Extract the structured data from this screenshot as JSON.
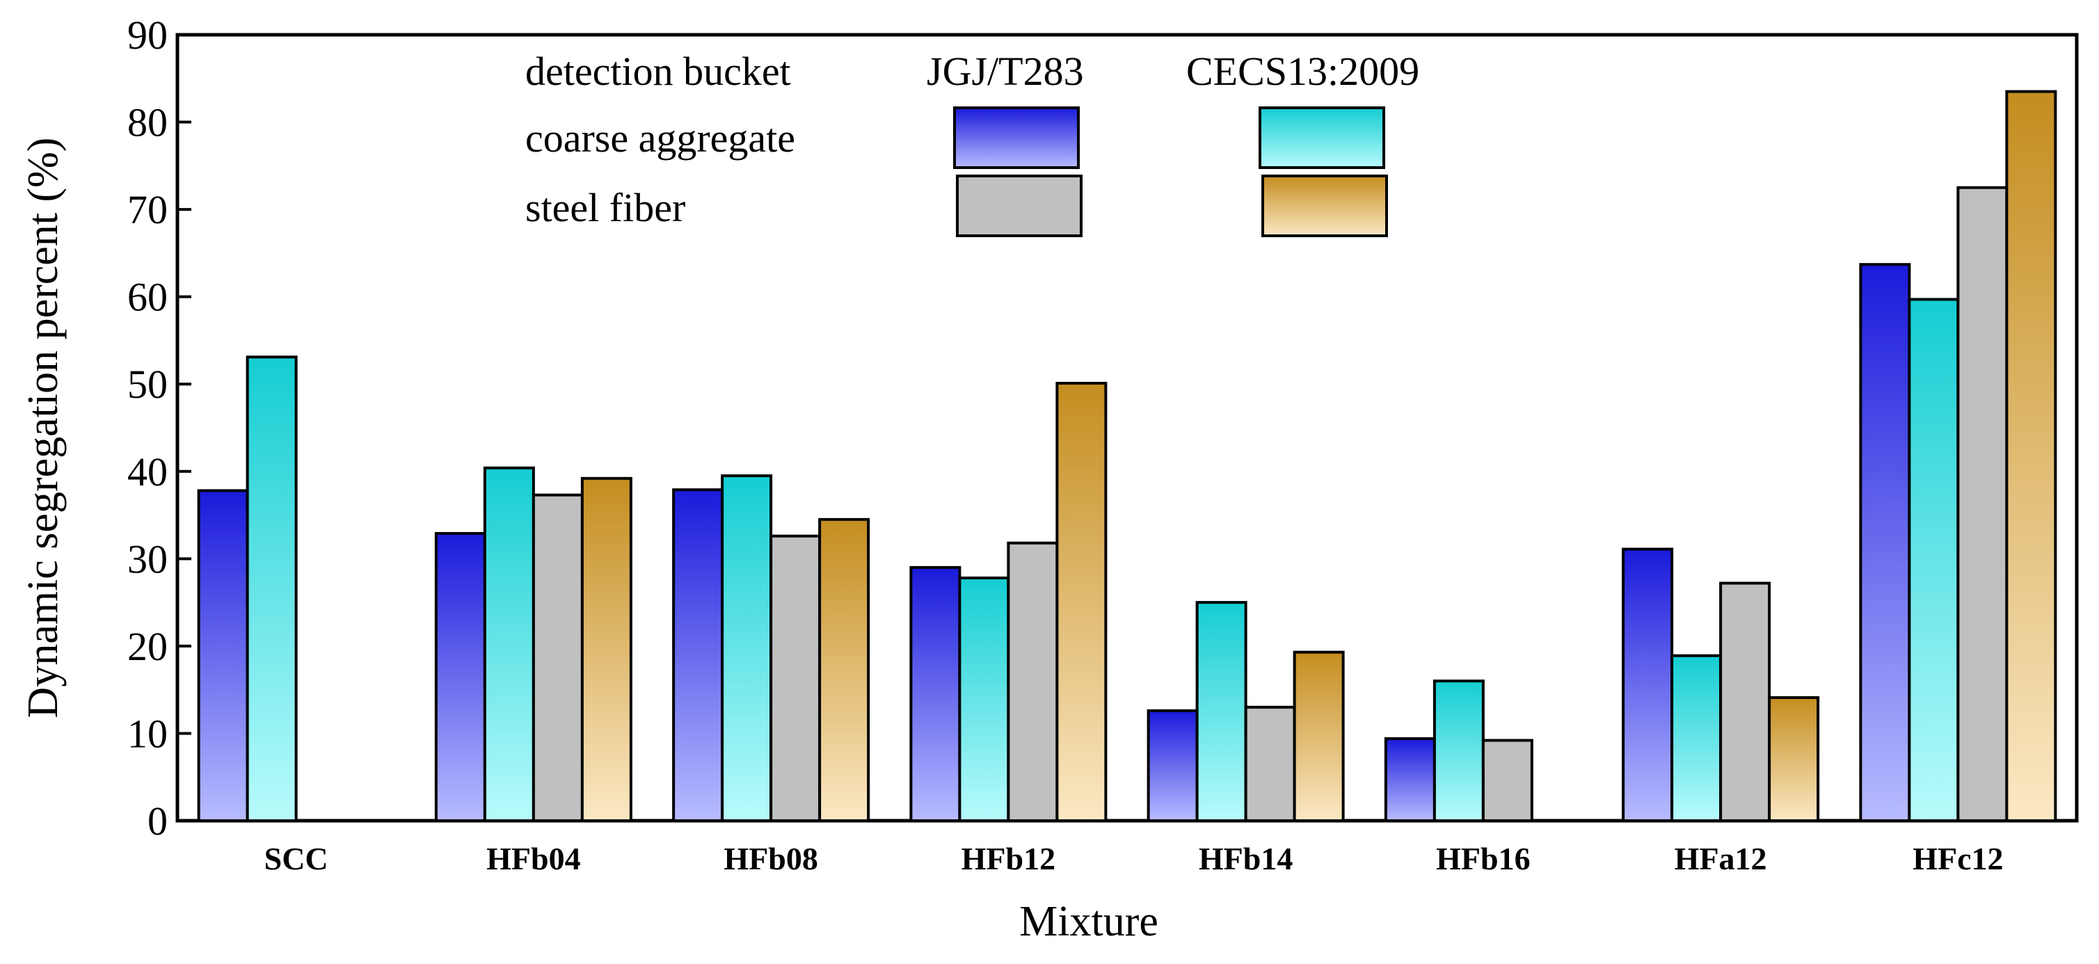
{
  "chart_data": {
    "type": "bar",
    "xlabel": "Mixture",
    "ylabel": "Dynamic segregation percent  (%)",
    "ylim": [
      0,
      90
    ],
    "yticks": [
      "0",
      "10",
      "20",
      "30",
      "40",
      "50",
      "60",
      "70",
      "80",
      "90"
    ],
    "categories": [
      "SCC",
      "HFb04",
      "HFb08",
      "HFb12",
      "HFb14",
      "HFb16",
      "HFa12",
      "HFc12"
    ],
    "series": [
      {
        "name": "coarse aggregate / JGJ/T283",
        "values": [
          37.8,
          32.9,
          37.9,
          29.0,
          12.6,
          9.4,
          31.1,
          63.7
        ],
        "colors": [
          "#1a1adb",
          "#b8bcff"
        ]
      },
      {
        "name": "coarse aggregate / CECS13:2009",
        "values": [
          53.1,
          40.4,
          39.5,
          27.8,
          25.0,
          16.0,
          18.9,
          59.7
        ],
        "colors": [
          "#14cdd2",
          "#b8fbfc"
        ]
      },
      {
        "name": "steel fiber / JGJ/T283",
        "values": [
          null,
          37.3,
          32.6,
          31.8,
          13.0,
          9.2,
          27.2,
          72.5
        ],
        "colors": [
          "#c0c0c0",
          "#c0c0c0"
        ]
      },
      {
        "name": "steel fiber / CECS13:2009",
        "values": [
          null,
          39.2,
          34.5,
          50.1,
          19.3,
          null,
          14.1,
          83.5
        ],
        "colors": [
          "#c48d1f",
          "#fbe8c4"
        ]
      }
    ],
    "legend": {
      "position": "top-center",
      "header": "detection bucket",
      "columns": [
        "JGJ/T283",
        "CECS13:2009"
      ],
      "rows": [
        "coarse aggregate",
        "steel fiber"
      ]
    }
  }
}
